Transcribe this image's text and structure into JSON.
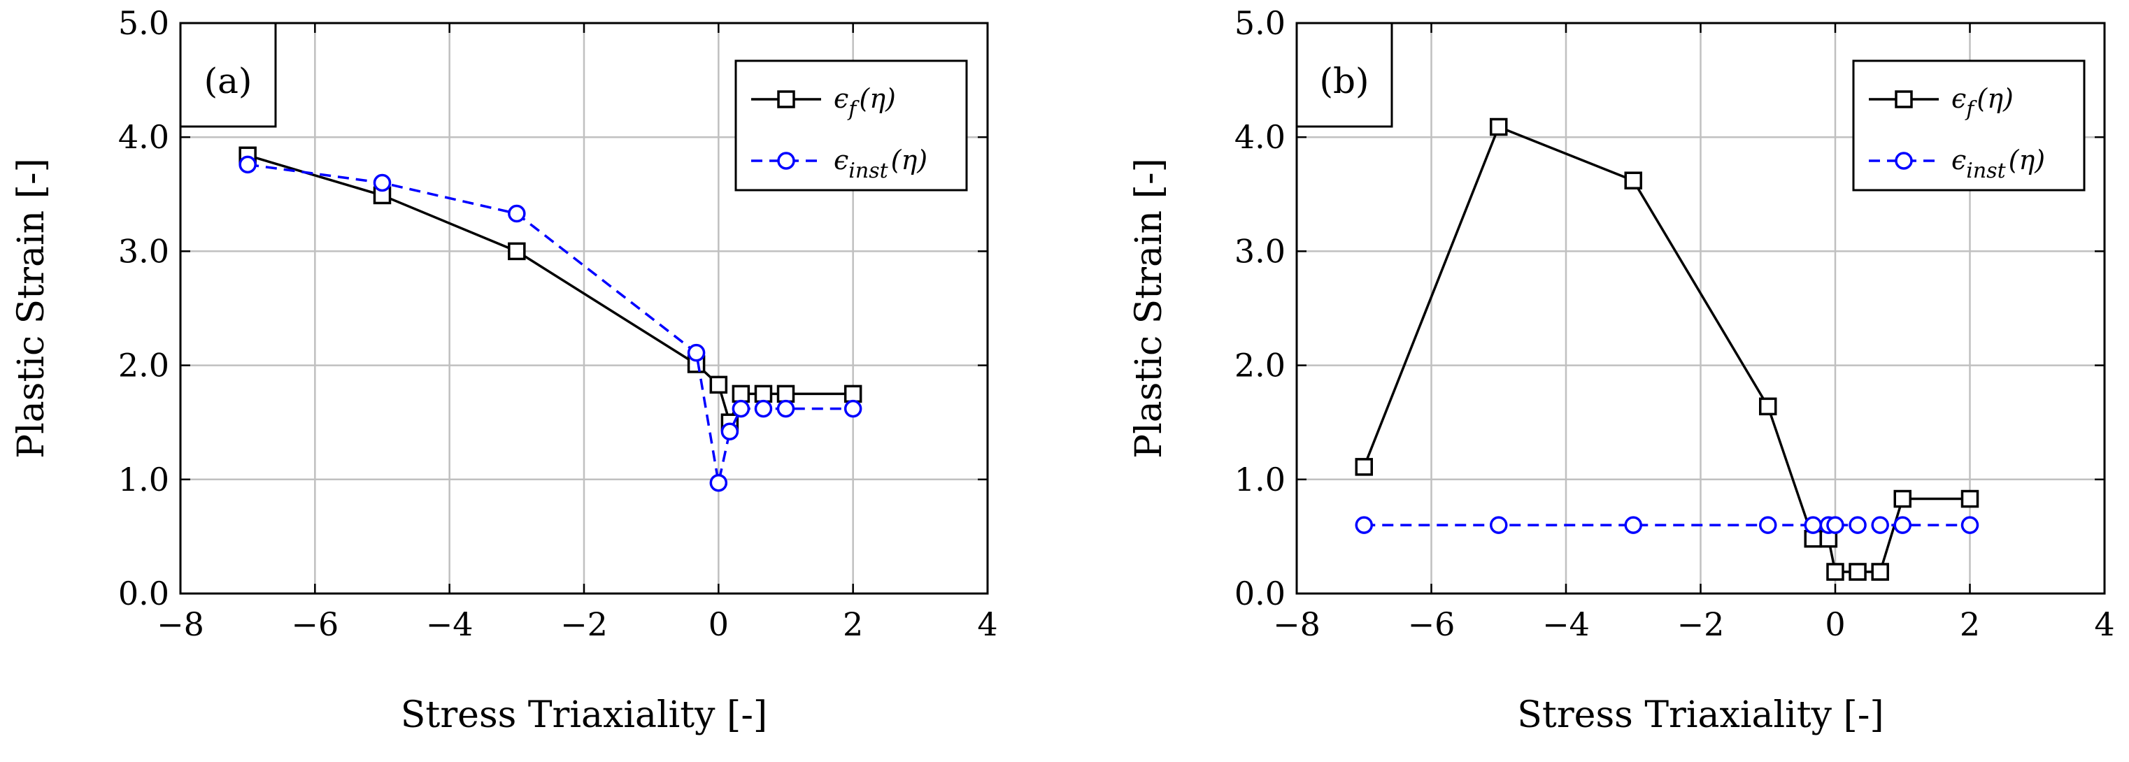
{
  "chart_data": [
    {
      "type": "line",
      "panel_label": "(a)",
      "xlabel": "Stress Triaxiality [-]",
      "ylabel": "Plastic Strain [-]",
      "xlim": [
        -8,
        4
      ],
      "ylim": [
        0,
        5
      ],
      "xticks": [
        -8,
        -6,
        -4,
        -2,
        0,
        2,
        4
      ],
      "xtick_labels": [
        "−8",
        "−6",
        "−4",
        "−2",
        "0",
        "2",
        "4"
      ],
      "yticks": [
        0,
        1,
        2,
        3,
        4,
        5
      ],
      "ytick_labels": [
        "0.0",
        "1.0",
        "2.0",
        "3.0",
        "4.0",
        "5.0"
      ],
      "grid": true,
      "legend_position": "top-right",
      "series": [
        {
          "name": "ϵf(η)",
          "legend_main": "ϵ",
          "legend_sub": "f",
          "legend_arg": "(η)",
          "color": "#000000",
          "marker": "square",
          "linestyle": "solid",
          "x": [
            -7,
            -5,
            -3,
            -0.33,
            0,
            0.167,
            0.333,
            0.667,
            1,
            2
          ],
          "y": [
            3.84,
            3.49,
            3.0,
            2.01,
            1.83,
            1.5,
            1.75,
            1.75,
            1.75,
            1.75
          ]
        },
        {
          "name": "ϵinst(η)",
          "legend_main": "ϵ",
          "legend_sub": "inst",
          "legend_arg": "(η)",
          "color": "#0000ff",
          "marker": "circle",
          "linestyle": "dashed",
          "x": [
            -7,
            -5,
            -3,
            -0.33,
            0,
            0.167,
            0.333,
            0.667,
            1,
            2
          ],
          "y": [
            3.76,
            3.6,
            3.33,
            2.11,
            0.97,
            1.42,
            1.62,
            1.62,
            1.62,
            1.62
          ]
        }
      ]
    },
    {
      "type": "line",
      "panel_label": "(b)",
      "xlabel": "Stress Triaxiality [-]",
      "ylabel": "Plastic Strain [-]",
      "xlim": [
        -8,
        4
      ],
      "ylim": [
        0,
        5
      ],
      "xticks": [
        -8,
        -6,
        -4,
        -2,
        0,
        2,
        4
      ],
      "xtick_labels": [
        "−8",
        "−6",
        "−4",
        "−2",
        "0",
        "2",
        "4"
      ],
      "yticks": [
        0,
        1,
        2,
        3,
        4,
        5
      ],
      "ytick_labels": [
        "0.0",
        "1.0",
        "2.0",
        "3.0",
        "4.0",
        "5.0"
      ],
      "grid": true,
      "legend_position": "top-right",
      "series": [
        {
          "name": "ϵf(η)",
          "legend_main": "ϵ",
          "legend_sub": "f",
          "legend_arg": "(η)",
          "color": "#000000",
          "marker": "square",
          "linestyle": "solid",
          "x": [
            -7,
            -5,
            -3,
            -1,
            -0.33,
            -0.1,
            0,
            0.333,
            0.667,
            1,
            2
          ],
          "y": [
            1.11,
            4.09,
            3.62,
            1.64,
            0.48,
            0.48,
            0.19,
            0.19,
            0.19,
            0.83,
            0.83
          ]
        },
        {
          "name": "ϵinst(η)",
          "legend_main": "ϵ",
          "legend_sub": "inst",
          "legend_arg": "(η)",
          "color": "#0000ff",
          "marker": "circle",
          "linestyle": "dashed",
          "x": [
            -7,
            -5,
            -3,
            -1,
            -0.33,
            -0.1,
            0,
            0.333,
            0.667,
            1,
            2
          ],
          "y": [
            0.6,
            0.6,
            0.6,
            0.6,
            0.6,
            0.6,
            0.6,
            0.6,
            0.6,
            0.6,
            0.6
          ]
        }
      ]
    }
  ]
}
